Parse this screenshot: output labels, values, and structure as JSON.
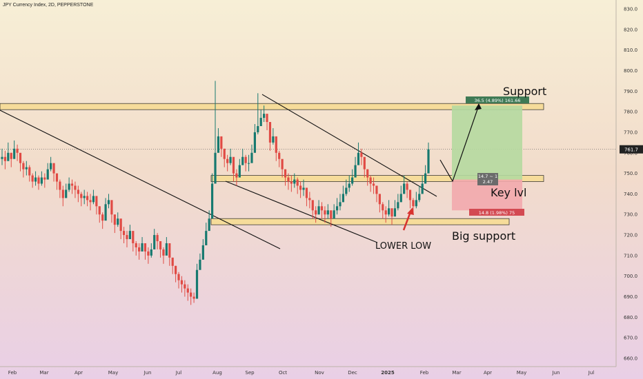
{
  "header": {
    "title": "JPY Currency Index, 2D, PEPPERSTONE"
  },
  "chart_data": {
    "type": "candlestick",
    "title": "JPY Currency Index, 2D, PEPPERSTONE",
    "xlabel": "",
    "ylabel": "",
    "ylim": [
      658,
      833
    ],
    "x_ticks": [
      "Feb",
      "Mar",
      "Apr",
      "May",
      "Jun",
      "Jul",
      "Aug",
      "Sep",
      "Oct",
      "Nov",
      "Dec",
      "2025",
      "Feb",
      "Mar",
      "Apr",
      "May",
      "Jun",
      "Jul"
    ],
    "y_ticks": [
      830,
      820,
      810,
      800,
      790,
      780,
      770,
      760,
      750,
      740,
      730,
      720,
      710,
      700,
      690,
      680,
      670,
      660
    ],
    "y_tick_labels": [
      "830.0",
      "820.0",
      "810.0",
      "800.0",
      "790.0",
      "780.0",
      "770.0",
      "760.0",
      "750.0",
      "740.0",
      "730.0",
      "720.0",
      "710.0",
      "700.0",
      "690.0",
      "680.0",
      "670.0",
      "660.0"
    ],
    "last_price": 761.7,
    "last_price_label": "761.7",
    "series": [
      {
        "name": "",
        "close": [
          758,
          756,
          760,
          757,
          762,
          760,
          755,
          752,
          753,
          749,
          746,
          748,
          745,
          748,
          747,
          752,
          755,
          750,
          746,
          742,
          738,
          742,
          745,
          744,
          742,
          740,
          738,
          739,
          737,
          736,
          739,
          734,
          730,
          727,
          735,
          737,
          730,
          725,
          728,
          722,
          720,
          718,
          722,
          716,
          714,
          712,
          716,
          712,
          710,
          713,
          720,
          717,
          713,
          710,
          716,
          709,
          705,
          701,
          698,
          696,
          694,
          692,
          690,
          689,
          703,
          708,
          715,
          722,
          728,
          745,
          760,
          768,
          762,
          757,
          755,
          758,
          750,
          748,
          754,
          758,
          755,
          755,
          760,
          770,
          773,
          777,
          779,
          775,
          765,
          768,
          760,
          757,
          752,
          748,
          746,
          745,
          747,
          744,
          742,
          743,
          738,
          737,
          732,
          730,
          734,
          732,
          730,
          732,
          728,
          732,
          734,
          736,
          740,
          743,
          745,
          748,
          754,
          760,
          758,
          752,
          748,
          745,
          744,
          740,
          735,
          732,
          730,
          733,
          729,
          733,
          736,
          740,
          745,
          742,
          737,
          734,
          737,
          740,
          745,
          750,
          761.7
        ],
        "high": [
          762,
          761,
          765,
          760,
          766,
          764,
          759,
          756,
          756,
          754,
          750,
          751,
          749,
          751,
          750,
          755,
          758,
          754,
          750,
          747,
          744,
          745,
          748,
          747,
          746,
          744,
          741,
          742,
          741,
          740,
          742,
          738,
          734,
          731,
          738,
          740,
          735,
          729,
          731,
          727,
          724,
          722,
          725,
          720,
          717,
          716,
          719,
          716,
          714,
          716,
          723,
          721,
          717,
          714,
          719,
          714,
          709,
          705,
          702,
          700,
          698,
          696,
          694,
          692,
          706,
          711,
          718,
          726,
          732,
          750,
          795,
          772,
          767,
          762,
          759,
          762,
          755,
          752,
          757,
          762,
          759,
          759,
          764,
          774,
          789,
          781,
          783,
          779,
          770,
          772,
          765,
          761,
          756,
          752,
          750,
          749,
          750,
          748,
          746,
          747,
          742,
          741,
          736,
          734,
          737,
          736,
          734,
          735,
          732,
          735,
          738,
          740,
          744,
          747,
          749,
          752,
          758,
          765,
          762,
          756,
          752,
          749,
          748,
          744,
          740,
          736,
          734,
          737,
          733,
          737,
          740,
          744,
          749,
          746,
          741,
          738,
          741,
          744,
          749,
          754,
          765
        ],
        "low": [
          754,
          752,
          756,
          753,
          758,
          756,
          751,
          748,
          749,
          746,
          743,
          744,
          742,
          744,
          743,
          748,
          751,
          746,
          742,
          738,
          734,
          738,
          741,
          740,
          738,
          736,
          734,
          735,
          734,
          732,
          735,
          730,
          726,
          723,
          731,
          733,
          726,
          721,
          724,
          718,
          716,
          714,
          718,
          712,
          710,
          708,
          712,
          708,
          706,
          709,
          716,
          713,
          709,
          706,
          712,
          705,
          701,
          697,
          694,
          692,
          690,
          688,
          686,
          687,
          699,
          704,
          711,
          718,
          724,
          740,
          756,
          764,
          758,
          753,
          751,
          754,
          746,
          744,
          750,
          754,
          751,
          751,
          756,
          766,
          769,
          773,
          775,
          771,
          761,
          764,
          756,
          753,
          748,
          744,
          742,
          741,
          743,
          740,
          738,
          739,
          734,
          733,
          728,
          726,
          730,
          728,
          726,
          728,
          724,
          728,
          730,
          732,
          736,
          739,
          741,
          744,
          750,
          756,
          754,
          748,
          744,
          741,
          740,
          736,
          731,
          728,
          726,
          729,
          725,
          729,
          732,
          736,
          741,
          738,
          733,
          730,
          733,
          736,
          741,
          746,
          758
        ]
      }
    ],
    "zones": [
      {
        "name": "Support",
        "y_low": 781,
        "y_high": 784
      },
      {
        "name": "Key lvl",
        "y_low": 746,
        "y_high": 749
      },
      {
        "name": "Big support",
        "y_low": 725,
        "y_high": 728
      }
    ],
    "annotations": {
      "support": "Support",
      "key_level": "Key lvl",
      "big_support": "Big support",
      "lower_low": "LOWER LOW"
    },
    "position_tool": {
      "entry": 747,
      "target": 783,
      "stop": 732,
      "target_label": "36.5 (4.89%) 161.66",
      "stop_label": "14.8 (1.98%) 75",
      "ratio_label_top": "14.7 ~ 1",
      "ratio_label_bottom": "2.47"
    },
    "colors": {
      "candle_up": "#16796f",
      "candle_down": "#e04a44",
      "zone_fill": "#f6dc9a",
      "zone_border": "#222222",
      "target_fill": "#b5d9a0",
      "stop_fill": "#f2a9ad",
      "last_price_bg": "#222222",
      "arrow_red": "#d8322e"
    }
  }
}
